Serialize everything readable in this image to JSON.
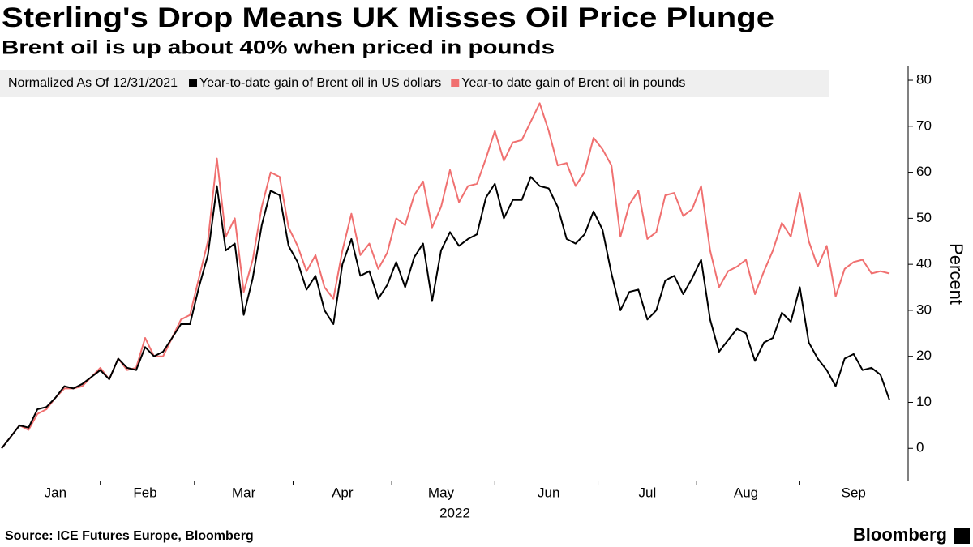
{
  "chart_data": {
    "type": "line",
    "title": "Sterling's Drop Means UK Misses Oil Price Plunge",
    "subtitle": "Brent oil is up about 40% when priced in pounds",
    "legend_note": "Normalized As Of 12/31/2021",
    "y_label": "Percent",
    "x_group_label": "2022",
    "source": "Source: ICE Futures Europe, Bloomberg",
    "branding": "Bloomberg",
    "categories": [
      null,
      null,
      null,
      null,
      null,
      null,
      "Jan",
      null,
      null,
      null,
      null,
      null,
      null,
      null,
      null,
      null,
      "Feb",
      null,
      null,
      null,
      null,
      null,
      null,
      null,
      null,
      null,
      null,
      "Mar",
      null,
      null,
      null,
      null,
      null,
      null,
      null,
      null,
      null,
      null,
      "Apr",
      null,
      null,
      null,
      null,
      null,
      null,
      null,
      null,
      null,
      null,
      "May",
      null,
      null,
      null,
      null,
      null,
      null,
      null,
      null,
      null,
      null,
      null,
      "Jun",
      null,
      null,
      null,
      null,
      null,
      null,
      null,
      null,
      null,
      null,
      "Jul",
      null,
      null,
      null,
      null,
      null,
      null,
      null,
      null,
      null,
      null,
      "Aug",
      null,
      null,
      null,
      null,
      null,
      null,
      null,
      null,
      null,
      null,
      null,
      "Sep",
      null,
      null,
      null,
      null
    ],
    "series": [
      {
        "name": "Year-to-date gain of Brent oil in US dollars",
        "color": "#000000",
        "values": [
          0,
          2.5,
          5,
          4.5,
          8.5,
          9,
          11,
          13.5,
          13,
          14,
          15.5,
          17,
          15,
          19.5,
          17.5,
          17,
          22,
          20,
          21,
          24,
          27,
          27,
          35,
          42,
          57,
          43,
          44.5,
          29,
          37,
          48.5,
          56,
          55,
          44,
          40.5,
          34.5,
          37.5,
          30,
          27,
          40,
          45.5,
          37.5,
          38.5,
          32.5,
          35.5,
          40.5,
          35,
          41.5,
          44.5,
          32,
          43,
          47,
          44,
          45.5,
          46.5,
          54.5,
          57.5,
          50,
          54,
          54,
          59,
          57,
          56.5,
          52.5,
          45.5,
          44.5,
          46.5,
          51.5,
          47.5,
          38,
          30,
          34,
          34.5,
          28,
          30,
          36.5,
          37.5,
          33.5,
          37,
          41,
          28,
          21,
          23.5,
          26,
          25,
          19,
          23,
          24,
          29.5,
          27.5,
          35,
          23,
          19.5,
          17,
          13.5,
          19.5,
          20.5,
          17,
          17.5,
          16,
          10.5
        ]
      },
      {
        "name": "Year-to date gain of Brent oil in pounds",
        "color": "#f07070",
        "values": [
          0,
          2.5,
          5,
          4,
          7.5,
          8.5,
          11,
          13,
          13,
          13.5,
          15.5,
          17.5,
          15,
          19.5,
          17,
          17.5,
          24,
          20,
          20,
          24,
          28,
          29,
          37,
          45,
          63,
          46,
          50,
          34,
          41,
          52.5,
          60,
          59,
          48,
          44,
          38.5,
          42,
          35,
          32.5,
          43,
          51,
          42,
          44.5,
          39,
          42.5,
          50,
          48.5,
          55,
          58,
          48,
          52.5,
          60.5,
          53.5,
          57,
          57.5,
          63,
          69,
          62.5,
          66.5,
          67,
          71,
          75,
          69,
          61.5,
          62,
          57,
          60,
          67.5,
          65,
          61.5,
          46,
          53,
          56,
          45.5,
          47,
          55,
          55.5,
          50.5,
          52,
          57,
          43,
          35,
          38.5,
          39.5,
          41,
          33.5,
          38.5,
          43,
          49,
          46,
          55.5,
          45,
          39.5,
          44,
          33,
          39,
          40.5,
          41,
          38,
          38.5,
          38
        ]
      }
    ],
    "ylim": [
      -7,
      83
    ],
    "yticks": [
      0,
      10,
      20,
      30,
      40,
      50,
      60,
      70,
      80
    ],
    "grid": false
  }
}
